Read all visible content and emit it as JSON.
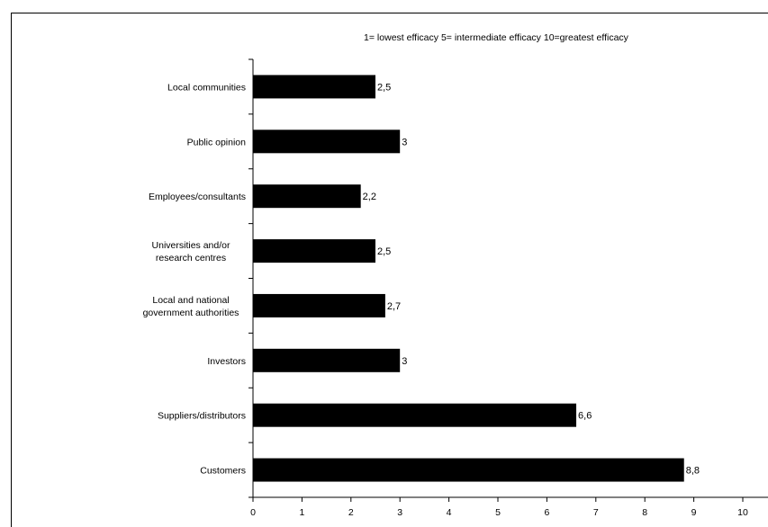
{
  "chart_data": {
    "type": "bar",
    "orientation": "horizontal",
    "title": "1= lowest efficacy 5= intermediate efficacy 10=greatest efficacy",
    "categories": [
      "Local communities",
      "Public opinion",
      "Employees/consultants",
      "Universities and/or research centres",
      "Local and national government authorities",
      "Investors",
      "Suppliers/distributors",
      "Customers"
    ],
    "values": [
      2.5,
      3,
      2.2,
      2.5,
      2.7,
      3,
      6.6,
      8.8
    ],
    "value_labels": [
      "2,5",
      "3",
      "2,2",
      "2,5",
      "2,7",
      "3",
      "6,6",
      "8,8"
    ],
    "xlim": [
      0,
      10
    ],
    "x_ticks": [
      "0",
      "1",
      "2",
      "3",
      "4",
      "5",
      "6",
      "7",
      "8",
      "9",
      "10"
    ],
    "xlabel": "",
    "ylabel": "",
    "grid": false,
    "legend": "none",
    "bar_color": "#000000"
  }
}
